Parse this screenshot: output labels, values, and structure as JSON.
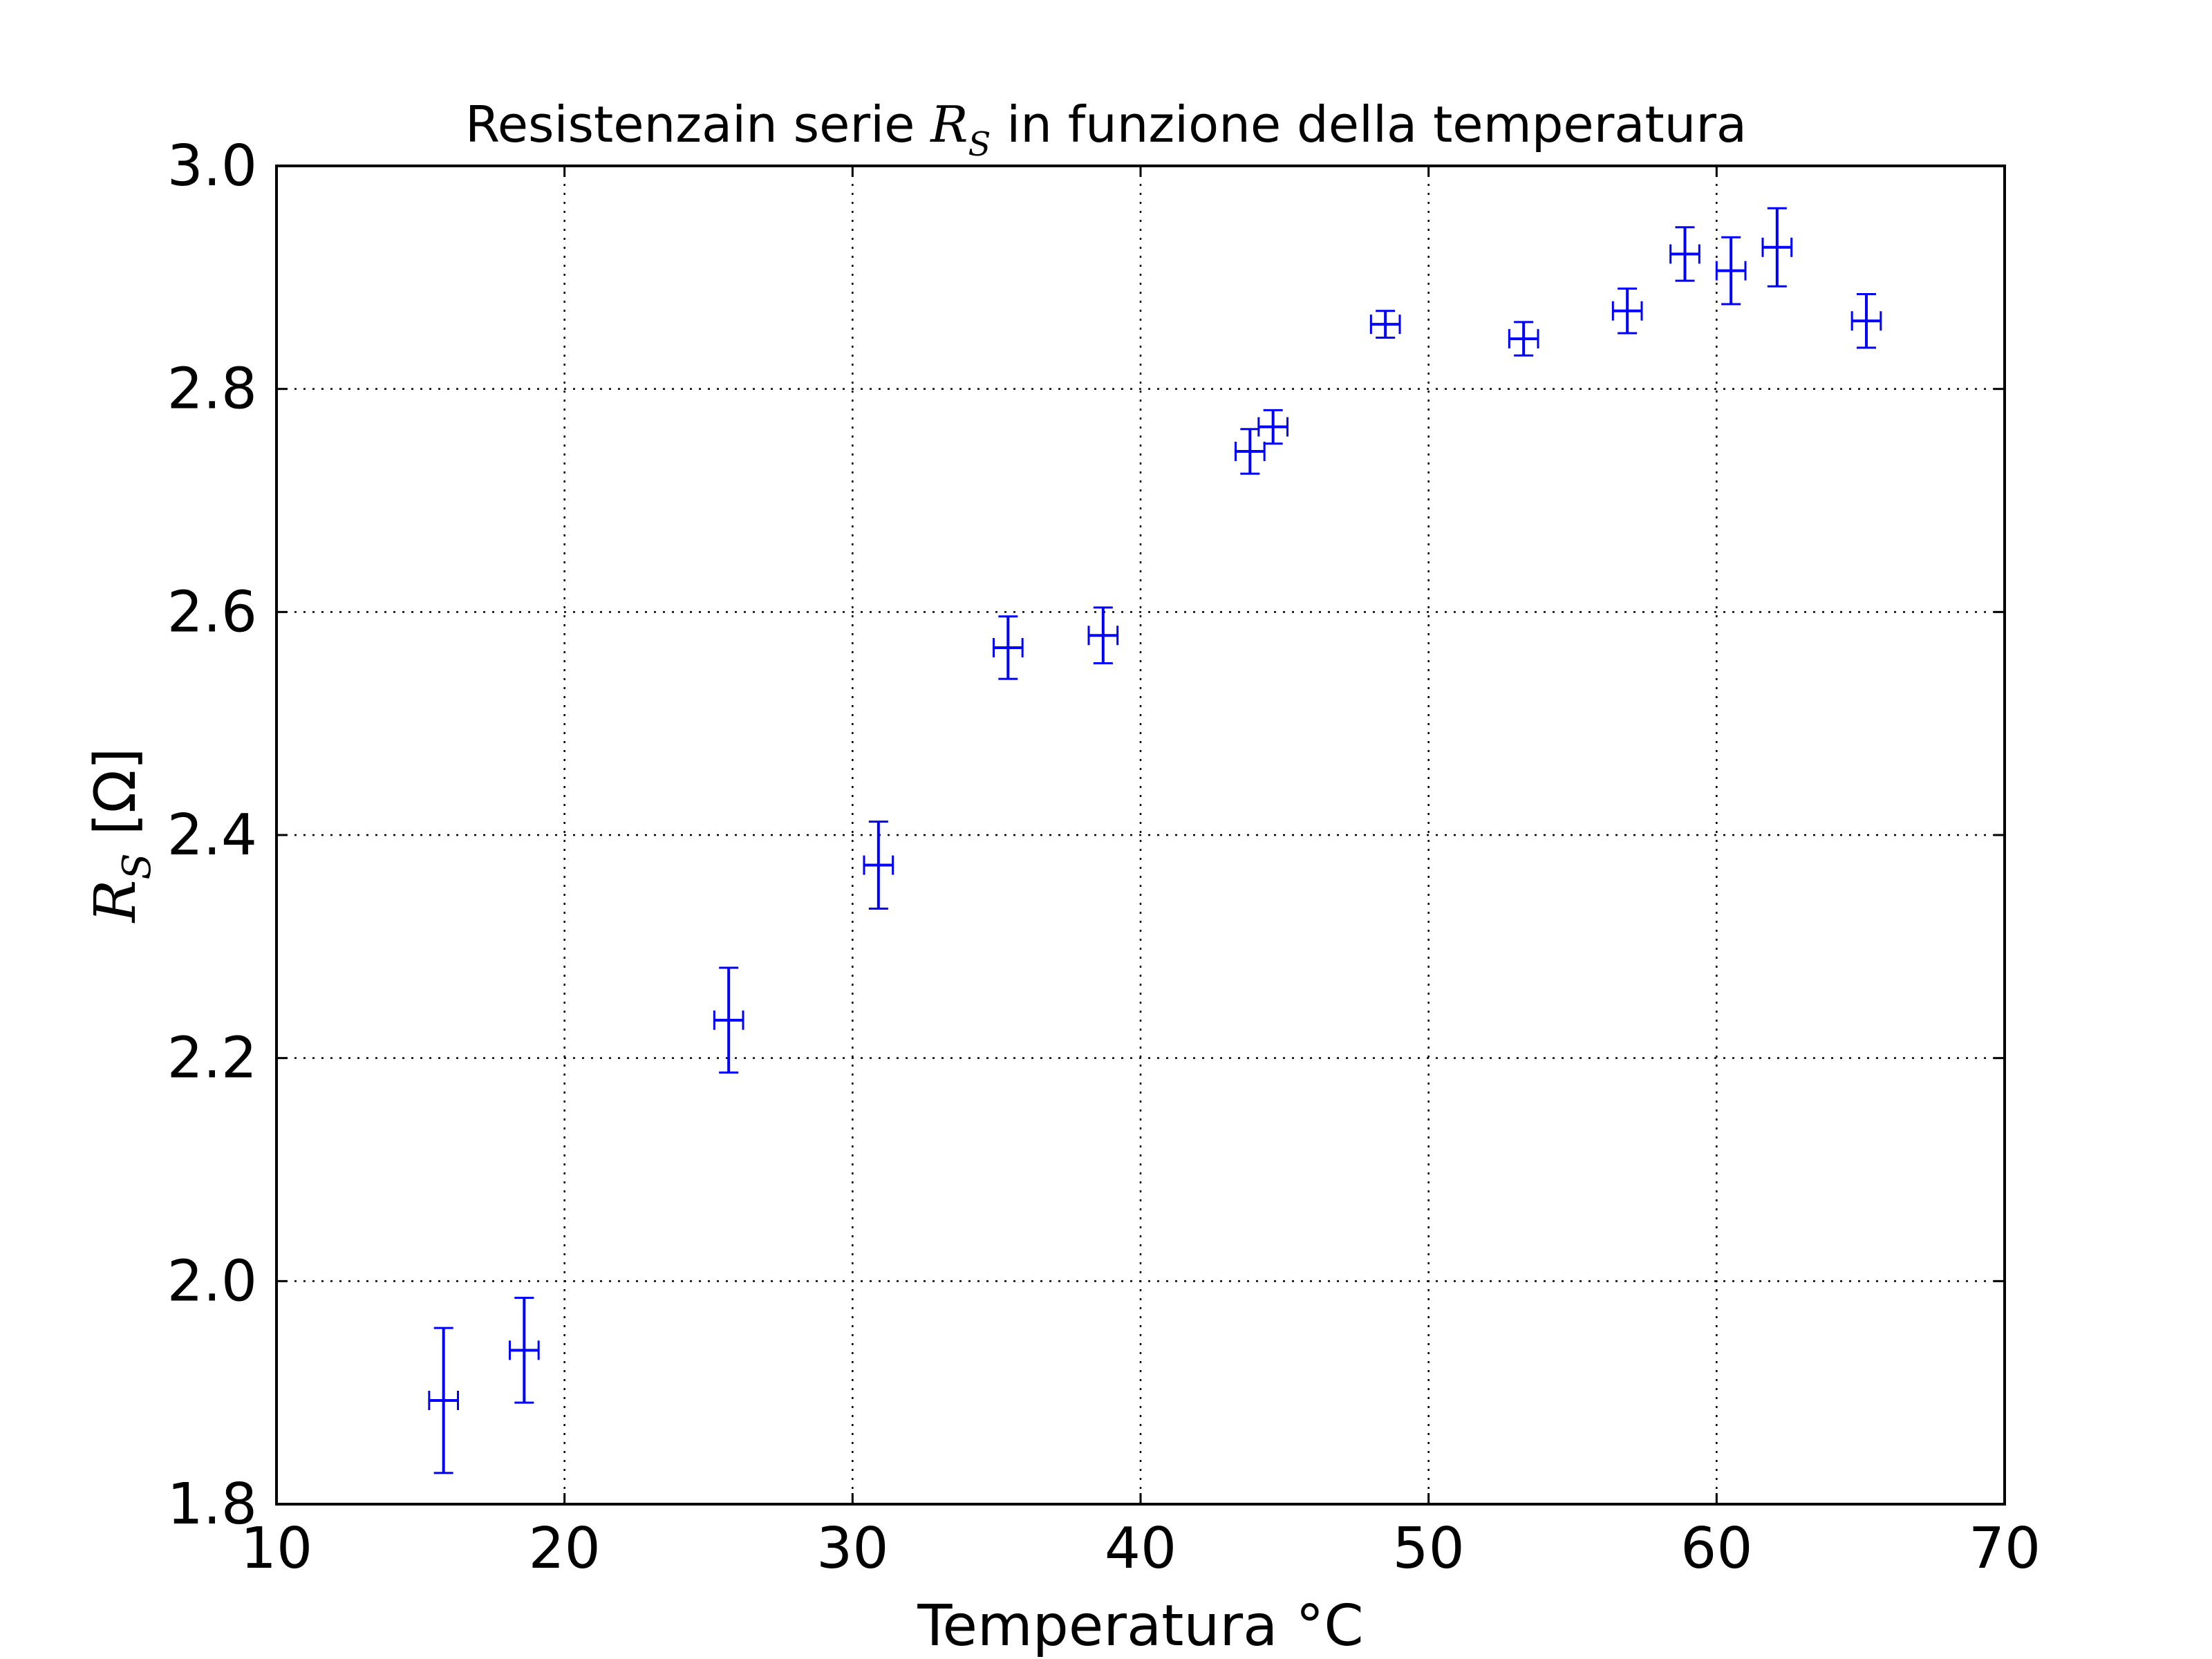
{
  "chart_data": {
    "type": "scatter",
    "title": {
      "prefix": "Resistenzain serie ",
      "math_main": "R",
      "math_sub": "S",
      "suffix": " in funzione della temperatura"
    },
    "xlabel": "Temperatura °C",
    "ylabel": {
      "math_main": "R",
      "math_sub": "S",
      "unit": " [Ω]"
    },
    "xlim": [
      10,
      70
    ],
    "ylim": [
      1.8,
      3.0
    ],
    "xticks": [
      10,
      20,
      30,
      40,
      50,
      60,
      70
    ],
    "yticks": [
      1.8,
      2.0,
      2.2,
      2.4,
      2.6,
      2.8,
      3.0
    ],
    "xtick_labels": [
      "10",
      "20",
      "30",
      "40",
      "50",
      "60",
      "70"
    ],
    "ytick_labels": [
      "1.8",
      "2.0",
      "2.2",
      "2.4",
      "2.6",
      "2.8",
      "3.0"
    ],
    "grid": true,
    "marker_color": "#0000ff",
    "points": [
      {
        "x": 15.8,
        "y": 1.893,
        "xerr": 0.5,
        "yerr": 0.065
      },
      {
        "x": 18.6,
        "y": 1.938,
        "xerr": 0.5,
        "yerr": 0.047
      },
      {
        "x": 25.7,
        "y": 2.234,
        "xerr": 0.5,
        "yerr": 0.047
      },
      {
        "x": 30.9,
        "y": 2.373,
        "xerr": 0.5,
        "yerr": 0.039
      },
      {
        "x": 35.4,
        "y": 2.568,
        "xerr": 0.5,
        "yerr": 0.028
      },
      {
        "x": 38.7,
        "y": 2.579,
        "xerr": 0.5,
        "yerr": 0.025
      },
      {
        "x": 43.8,
        "y": 2.744,
        "xerr": 0.5,
        "yerr": 0.02
      },
      {
        "x": 44.6,
        "y": 2.766,
        "xerr": 0.5,
        "yerr": 0.015
      },
      {
        "x": 48.5,
        "y": 2.858,
        "xerr": 0.5,
        "yerr": 0.012
      },
      {
        "x": 53.3,
        "y": 2.845,
        "xerr": 0.5,
        "yerr": 0.015
      },
      {
        "x": 56.9,
        "y": 2.87,
        "xerr": 0.5,
        "yerr": 0.02
      },
      {
        "x": 58.9,
        "y": 2.921,
        "xerr": 0.5,
        "yerr": 0.024
      },
      {
        "x": 60.5,
        "y": 2.906,
        "xerr": 0.5,
        "yerr": 0.03
      },
      {
        "x": 62.1,
        "y": 2.927,
        "xerr": 0.5,
        "yerr": 0.035
      },
      {
        "x": 65.2,
        "y": 2.861,
        "xerr": 0.5,
        "yerr": 0.024
      }
    ]
  }
}
